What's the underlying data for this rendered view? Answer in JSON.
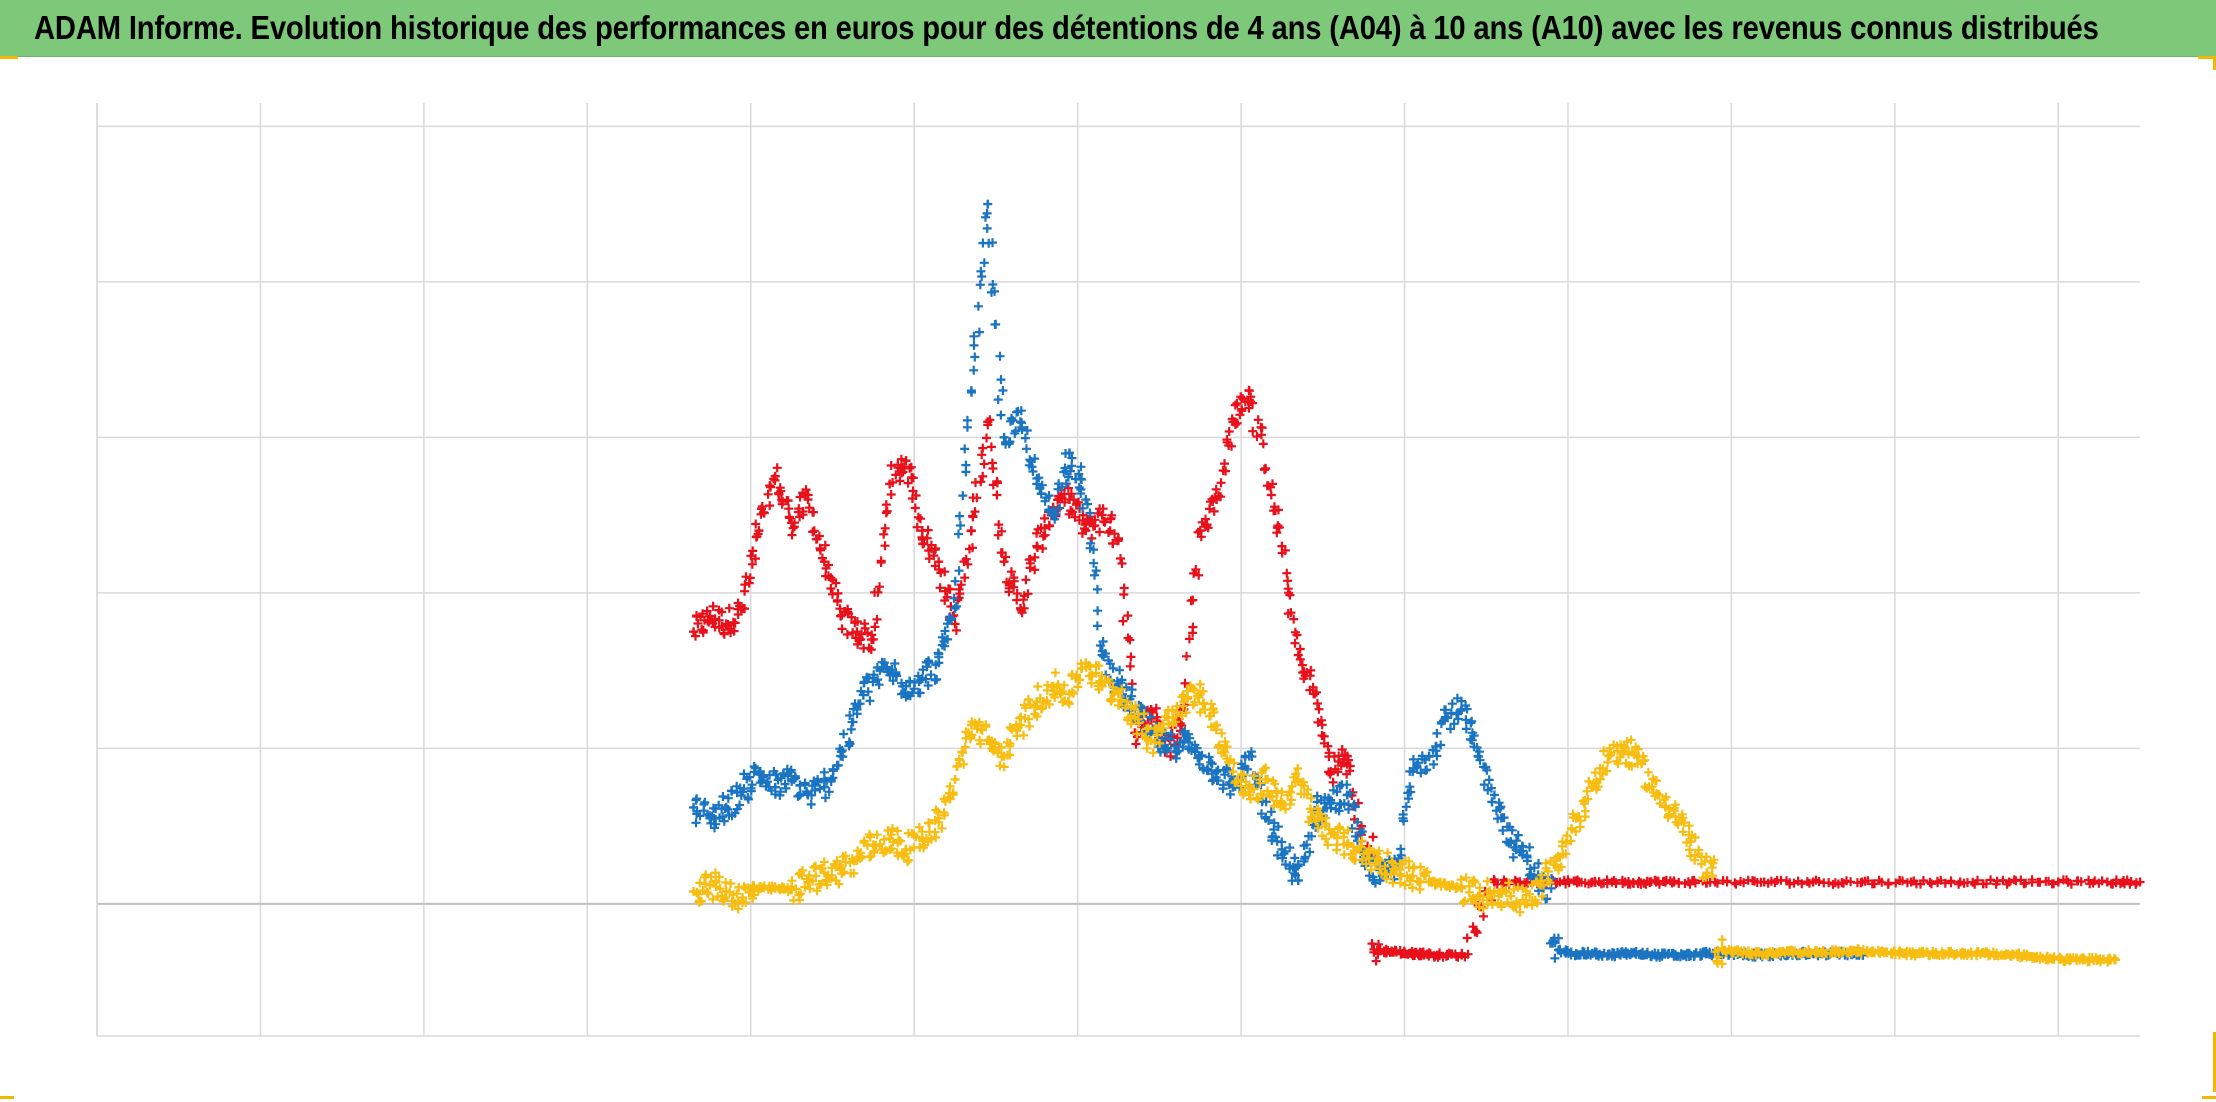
{
  "page": {
    "title": "ADAM Informe. Evolution historique des performances en euros pour des détentions de 4 ans (A04) à 10 ans (A10) avec les revenus connus distribués"
  },
  "colors": {
    "title_bar": "#7ec87a",
    "grid": "#d9d9d9",
    "axis": "#bfbfbf",
    "corner_accent": "#f2b705"
  },
  "chart_data": {
    "type": "scatter",
    "marker": "+",
    "title": "ADAM Informe. Evolution historique des performances en euros pour des détentions de 4 ans (A04) à 10 ans (A10) avec les revenus connus distribués",
    "xlabel": "",
    "ylabel": "",
    "x_range": [
      0,
      12.5
    ],
    "y_range": [
      -0.85,
      5.15
    ],
    "zero_line_y": 0,
    "x_gridlines": [
      0,
      1,
      2,
      3,
      4,
      5,
      6,
      7,
      8,
      9,
      10,
      11,
      12
    ],
    "y_gridlines": [
      1,
      2,
      3,
      4,
      5
    ],
    "tick_labels_shown": false,
    "legend": "none",
    "series": [
      {
        "color": "#e8101a",
        "x": [
          3.65,
          3.75,
          3.85,
          3.95,
          4.05,
          4.15,
          4.25,
          4.35,
          4.45,
          4.55,
          4.65,
          4.75,
          4.85,
          4.95,
          5.05,
          5.15,
          5.25,
          5.35,
          5.45,
          5.55,
          5.65,
          5.75,
          5.85,
          5.95,
          6.05,
          6.15,
          6.25,
          6.35,
          6.45,
          6.55,
          6.65,
          6.75,
          6.85,
          6.95,
          7.05,
          7.15,
          7.25,
          7.35,
          7.45,
          7.55,
          7.65,
          7.75,
          7.85,
          7.95,
          8.05,
          8.1,
          8.2,
          8.35,
          8.55,
          8.75,
          8.95,
          9.15,
          9.35,
          9.5,
          9.65,
          9.9,
          10.2,
          10.5,
          10.8,
          11.1,
          11.4,
          11.7,
          12.0,
          12.3,
          12.5
        ],
        "y": [
          1.75,
          1.85,
          1.8,
          1.9,
          2.4,
          2.75,
          2.45,
          2.6,
          2.2,
          1.85,
          1.75,
          1.7,
          2.7,
          2.85,
          2.4,
          2.2,
          1.8,
          2.4,
          3.1,
          2.2,
          1.9,
          2.3,
          2.55,
          2.6,
          2.4,
          2.5,
          2.35,
          1.1,
          1.25,
          1.0,
          1.25,
          2.4,
          2.6,
          3.1,
          3.3,
          2.8,
          2.3,
          1.6,
          1.35,
          0.85,
          0.95,
          0.35,
          -0.3,
          -0.31,
          -0.32,
          -0.32,
          -0.33,
          -0.33,
          0.14,
          0.14,
          0.14,
          0.14,
          0.14,
          0.14,
          0.14,
          0.14,
          0.14,
          0.14,
          0.14,
          0.14,
          0.14,
          0.14,
          0.14,
          0.14,
          0.14
        ]
      },
      {
        "color": "#1a74c2",
        "x": [
          3.65,
          3.75,
          3.85,
          3.95,
          4.05,
          4.15,
          4.25,
          4.35,
          4.45,
          4.55,
          4.65,
          4.75,
          4.85,
          4.95,
          5.05,
          5.15,
          5.25,
          5.35,
          5.45,
          5.55,
          5.65,
          5.75,
          5.85,
          5.95,
          6.05,
          6.15,
          6.25,
          6.35,
          6.45,
          6.55,
          6.65,
          6.75,
          6.85,
          6.95,
          7.05,
          7.15,
          7.25,
          7.35,
          7.45,
          7.55,
          7.65,
          7.75,
          7.85,
          7.95,
          8.05,
          8.15,
          8.25,
          8.35,
          8.45,
          8.55,
          8.65,
          8.75,
          8.85,
          8.95,
          9.05,
          9.15,
          9.25,
          9.35,
          9.45,
          9.55,
          9.65,
          9.75,
          9.85,
          9.95,
          10.05,
          10.15,
          10.25,
          10.35,
          10.45,
          10.55,
          10.65,
          10.75,
          10.8
        ],
        "y": [
          0.62,
          0.55,
          0.62,
          0.72,
          0.85,
          0.75,
          0.8,
          0.7,
          0.75,
          0.95,
          1.25,
          1.45,
          1.5,
          1.4,
          1.45,
          1.55,
          1.9,
          3.3,
          4.5,
          3.0,
          3.1,
          2.7,
          2.5,
          2.9,
          2.6,
          1.6,
          1.4,
          1.25,
          1.1,
          1.0,
          1.05,
          0.95,
          0.85,
          0.75,
          0.95,
          0.55,
          0.35,
          0.15,
          0.6,
          0.65,
          0.7,
          0.3,
          0.15,
          0.25,
          0.85,
          0.95,
          1.2,
          1.25,
          0.95,
          0.7,
          0.4,
          0.3,
          0.1,
          -0.3,
          -0.32,
          -0.32,
          -0.33,
          -0.32,
          -0.32,
          -0.33,
          -0.33,
          -0.33,
          -0.32,
          -0.32,
          -0.32,
          -0.33,
          -0.33,
          -0.32,
          -0.32,
          -0.32,
          -0.32,
          -0.32,
          -0.32
        ]
      },
      {
        "color": "#f7bd11",
        "x": [
          3.65,
          3.75,
          3.85,
          3.95,
          4.05,
          4.15,
          4.25,
          4.35,
          4.45,
          4.55,
          4.65,
          4.75,
          4.85,
          4.95,
          5.05,
          5.15,
          5.25,
          5.35,
          5.45,
          5.55,
          5.65,
          5.75,
          5.85,
          5.95,
          6.05,
          6.15,
          6.25,
          6.35,
          6.45,
          6.55,
          6.65,
          6.75,
          6.85,
          6.95,
          7.05,
          7.15,
          7.25,
          7.35,
          7.45,
          7.55,
          7.65,
          7.75,
          7.85,
          7.95,
          8.05,
          8.15,
          8.25,
          8.35,
          8.45,
          8.55,
          8.65,
          8.75,
          8.85,
          8.95,
          9.05,
          9.15,
          9.25,
          9.35,
          9.45,
          9.55,
          9.65,
          9.75,
          9.85,
          9.95,
          10.05,
          10.15,
          10.25,
          10.35,
          10.45,
          10.55,
          10.65,
          10.75,
          10.85,
          10.95,
          11.05,
          11.15,
          11.25,
          11.35,
          11.45,
          11.55,
          11.65,
          11.75,
          11.85,
          11.95,
          12.05,
          12.15,
          12.25,
          12.35
        ],
        "y": [
          0.08,
          0.12,
          0.08,
          0.04,
          0.1,
          0.1,
          0.09,
          0.14,
          0.2,
          0.22,
          0.28,
          0.38,
          0.42,
          0.35,
          0.42,
          0.55,
          0.8,
          1.15,
          1.05,
          0.95,
          1.15,
          1.3,
          1.4,
          1.35,
          1.55,
          1.4,
          1.35,
          1.2,
          1.05,
          1.2,
          1.3,
          1.35,
          1.15,
          0.85,
          0.7,
          0.8,
          0.65,
          0.8,
          0.55,
          0.45,
          0.38,
          0.32,
          0.28,
          0.22,
          0.18,
          0.14,
          0.12,
          0.1,
          0.05,
          0.08,
          0.05,
          0.0,
          0.12,
          0.3,
          0.55,
          0.75,
          0.95,
          1.0,
          0.9,
          0.7,
          0.6,
          0.4,
          0.2,
          -0.3,
          -0.31,
          -0.32,
          -0.32,
          -0.31,
          -0.31,
          -0.31,
          -0.31,
          -0.3,
          -0.31,
          -0.31,
          -0.32,
          -0.32,
          -0.32,
          -0.32,
          -0.32,
          -0.32,
          -0.33,
          -0.33,
          -0.34,
          -0.35,
          -0.36,
          -0.36,
          -0.36,
          -0.36
        ]
      }
    ]
  }
}
